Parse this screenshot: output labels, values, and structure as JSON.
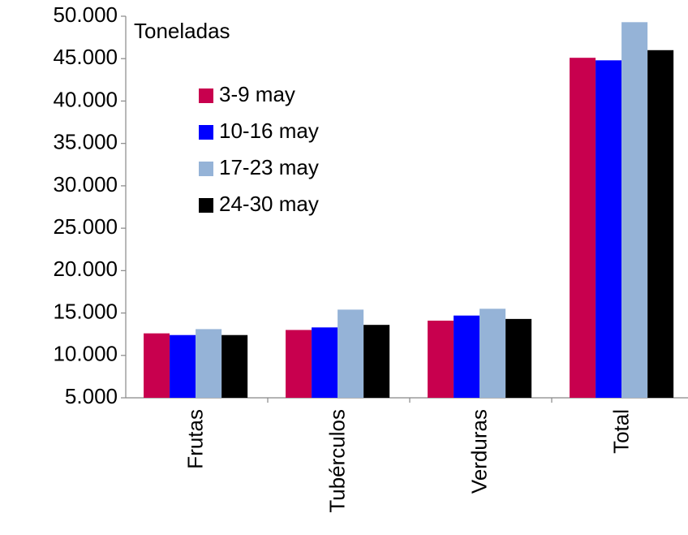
{
  "chart_data": {
    "type": "bar",
    "title": "Toneladas",
    "categories": [
      "Frutas",
      "Tubérculos",
      "Verduras",
      "Total"
    ],
    "series": [
      {
        "name": "3-9 may",
        "color": "#c8004e",
        "values": [
          12600,
          13000,
          14100,
          45100
        ]
      },
      {
        "name": "10-16 may",
        "color": "#0000ff",
        "values": [
          12400,
          13300,
          14700,
          44800
        ]
      },
      {
        "name": "17-23 may",
        "color": "#95b3d7",
        "values": [
          13100,
          15400,
          15500,
          49300
        ]
      },
      {
        "name": "24-30 may",
        "color": "#000000",
        "values": [
          12400,
          13600,
          14300,
          46000
        ]
      }
    ],
    "ylim": [
      5000,
      50000
    ],
    "yticks": [
      {
        "value": 5000,
        "label": "5.000"
      },
      {
        "value": 10000,
        "label": "10.000"
      },
      {
        "value": 15000,
        "label": "15.000"
      },
      {
        "value": 20000,
        "label": "20.000"
      },
      {
        "value": 25000,
        "label": "25.000"
      },
      {
        "value": 30000,
        "label": "30.000"
      },
      {
        "value": 35000,
        "label": "35.000"
      },
      {
        "value": 40000,
        "label": "40.000"
      },
      {
        "value": 45000,
        "label": "45.000"
      },
      {
        "value": 50000,
        "label": "50.000"
      }
    ],
    "grid": false
  }
}
